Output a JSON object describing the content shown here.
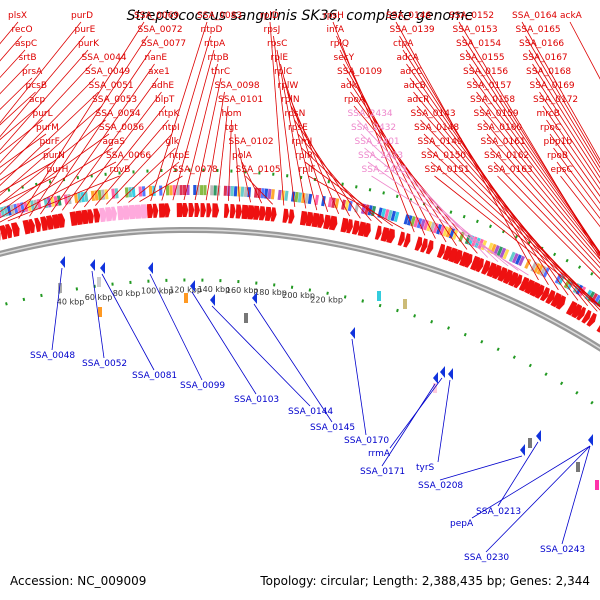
{
  "title": "Streptococcus sanguinis SK36, complete genome",
  "footer": {
    "accession": "Accession: NC_009009",
    "summary": "Topology: circular; Length: 2,388,435 bp; Genes: 2,344"
  },
  "colors": {
    "forward_gene": "#ee1111",
    "forward_label": "#dd0000",
    "rna_label": "#ee88cc",
    "reverse_label": "#0000cc",
    "backbone": "#888888",
    "ruler": "#229922"
  },
  "top_labels": [
    {
      "text": "plsX",
      "color": "red"
    },
    {
      "text": "recO",
      "color": "red"
    },
    {
      "text": "aspC",
      "color": "red"
    },
    {
      "text": "srtB",
      "color": "red"
    },
    {
      "text": "prsA",
      "color": "red"
    },
    {
      "text": "pcsB",
      "color": "red"
    },
    {
      "text": "acp",
      "color": "red"
    },
    {
      "text": "purL",
      "color": "red"
    },
    {
      "text": "purM",
      "color": "red"
    },
    {
      "text": "purF",
      "color": "red"
    },
    {
      "text": "purN",
      "color": "red"
    },
    {
      "text": "purH",
      "color": "red"
    },
    {
      "text": "purD",
      "color": "red"
    },
    {
      "text": "purE",
      "color": "red"
    },
    {
      "text": "purK",
      "color": "red"
    },
    {
      "text": "SSA_0044",
      "color": "red"
    },
    {
      "text": "SSA_0049",
      "color": "red"
    },
    {
      "text": "SSA_0051",
      "color": "red"
    },
    {
      "text": "SSA_0053",
      "color": "red"
    },
    {
      "text": "SSA_0054",
      "color": "red"
    },
    {
      "text": "SSA_0056",
      "color": "red"
    },
    {
      "text": "agaS",
      "color": "red"
    },
    {
      "text": "SSA_0066",
      "color": "red"
    },
    {
      "text": "ruvB",
      "color": "red"
    },
    {
      "text": "SSA_0069",
      "color": "red"
    },
    {
      "text": "SSA_0072",
      "color": "red"
    },
    {
      "text": "SSA_0077",
      "color": "red"
    },
    {
      "text": "nanE",
      "color": "red"
    },
    {
      "text": "axe1",
      "color": "red"
    },
    {
      "text": "adhE",
      "color": "red"
    },
    {
      "text": "blpT",
      "color": "red"
    },
    {
      "text": "ntpK",
      "color": "red"
    },
    {
      "text": "ntpI",
      "color": "red"
    },
    {
      "text": "glk",
      "color": "red"
    },
    {
      "text": "ntpE",
      "color": "red"
    },
    {
      "text": "SSA_0078",
      "color": "red"
    },
    {
      "text": "SSA_0083",
      "color": "red"
    },
    {
      "text": "ntpD",
      "color": "red"
    },
    {
      "text": "ntpA",
      "color": "red"
    },
    {
      "text": "ntpB",
      "color": "red"
    },
    {
      "text": "thrC",
      "color": "red"
    },
    {
      "text": "SSA_0098",
      "color": "red"
    },
    {
      "text": "SSA_0101",
      "color": "red"
    },
    {
      "text": "hom",
      "color": "red"
    },
    {
      "text": "tgt",
      "color": "red"
    },
    {
      "text": "SSA_0102",
      "color": "red"
    },
    {
      "text": "polA",
      "color": "red"
    },
    {
      "text": "SSA_0105",
      "color": "red"
    },
    {
      "text": "rplD",
      "color": "red"
    },
    {
      "text": "rpsJ",
      "color": "red"
    },
    {
      "text": "rpsC",
      "color": "red"
    },
    {
      "text": "rplE",
      "color": "red"
    },
    {
      "text": "rplC",
      "color": "red"
    },
    {
      "text": "rplW",
      "color": "red"
    },
    {
      "text": "rplN",
      "color": "red"
    },
    {
      "text": "rpsN",
      "color": "red"
    },
    {
      "text": "rpsE",
      "color": "red"
    },
    {
      "text": "rpmJ",
      "color": "red"
    },
    {
      "text": "rplR",
      "color": "red"
    },
    {
      "text": "rplF",
      "color": "red"
    },
    {
      "text": "rpsH",
      "color": "red"
    },
    {
      "text": "infA",
      "color": "red"
    },
    {
      "text": "rplQ",
      "color": "red"
    },
    {
      "text": "secY",
      "color": "red"
    },
    {
      "text": "SSA_0109",
      "color": "red"
    },
    {
      "text": "adk",
      "color": "red"
    },
    {
      "text": "rpoA",
      "color": "red"
    },
    {
      "text": "SSA_2434",
      "color": "pink"
    },
    {
      "text": "SSA_2432",
      "color": "pink"
    },
    {
      "text": "SSA_2401",
      "color": "pink"
    },
    {
      "text": "SSA_2433",
      "color": "pink"
    },
    {
      "text": "SSA_2403",
      "color": "pink"
    },
    {
      "text": "SSA_0146",
      "color": "red"
    },
    {
      "text": "SSA_0139",
      "color": "red"
    },
    {
      "text": "ctpA",
      "color": "red"
    },
    {
      "text": "adcA",
      "color": "red"
    },
    {
      "text": "adcC",
      "color": "red"
    },
    {
      "text": "adcB",
      "color": "red"
    },
    {
      "text": "adcR",
      "color": "red"
    },
    {
      "text": "SSA_0143",
      "color": "red"
    },
    {
      "text": "SSA_0148",
      "color": "red"
    },
    {
      "text": "SSA_0149",
      "color": "red"
    },
    {
      "text": "SSA_0150",
      "color": "red"
    },
    {
      "text": "SSA_0151",
      "color": "red"
    },
    {
      "text": "SSA_0152",
      "color": "red"
    },
    {
      "text": "SSA_0153",
      "color": "red"
    },
    {
      "text": "SSA_0154",
      "color": "red"
    },
    {
      "text": "SSA_0155",
      "color": "red"
    },
    {
      "text": "SSA_0156",
      "color": "red"
    },
    {
      "text": "SSA_0157",
      "color": "red"
    },
    {
      "text": "SSA_0158",
      "color": "red"
    },
    {
      "text": "SSA_0159",
      "color": "red"
    },
    {
      "text": "SSA_0160",
      "color": "red"
    },
    {
      "text": "SSA_0161",
      "color": "red"
    },
    {
      "text": "SSA_0162",
      "color": "red"
    },
    {
      "text": "SSA_0163",
      "color": "red"
    },
    {
      "text": "SSA_0164",
      "color": "red"
    },
    {
      "text": "SSA_0165",
      "color": "red"
    },
    {
      "text": "SSA_0166",
      "color": "red"
    },
    {
      "text": "SSA_0167",
      "color": "red"
    },
    {
      "text": "SSA_0168",
      "color": "red"
    },
    {
      "text": "SSA_0169",
      "color": "red"
    },
    {
      "text": "SSA_0172",
      "color": "red"
    },
    {
      "text": "mrcB",
      "color": "red"
    },
    {
      "text": "rpoC",
      "color": "red"
    },
    {
      "text": "pbp1b",
      "color": "red"
    },
    {
      "text": "rpoB",
      "color": "red"
    },
    {
      "text": "epsC",
      "color": "red"
    },
    {
      "text": "ackA",
      "color": "red"
    }
  ],
  "bottom_labels": [
    "SSA_0048",
    "SSA_0052",
    "SSA_0081",
    "SSA_0099",
    "SSA_0103",
    "SSA_0144",
    "SSA_0145",
    "SSA_0170",
    "rrmA",
    "SSA_0171",
    "tyrS",
    "SSA_0208",
    "SSA_0213",
    "pepA",
    "SSA_0230",
    "SSA_0243"
  ],
  "ticks": [
    "40 kbp",
    "60 kbp",
    "80 kbp",
    "100 kbp",
    "120 kbp",
    "140 kbp",
    "160 kbp",
    "180 kbp",
    "200 kbp",
    "220 kbp"
  ]
}
